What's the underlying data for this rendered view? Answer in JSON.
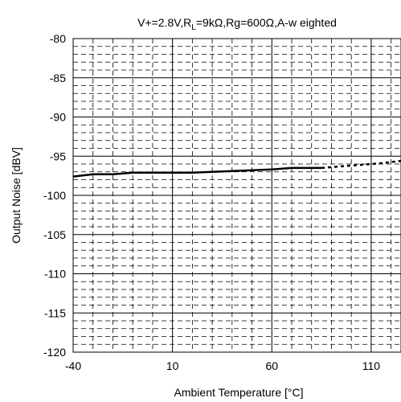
{
  "chart_data": {
    "type": "line",
    "title_parts": {
      "prefix": "V+=2.8V,R",
      "subscript": "L",
      "suffix": "=9kΩ,Rg=600Ω,A-w eighted"
    },
    "xlabel": "Ambient Temperature [°C]",
    "ylabel": "Output Noise [dBV]",
    "xlim": [
      -40,
      125
    ],
    "ylim": [
      -120,
      -80
    ],
    "x_ticks": [
      -40,
      10,
      60,
      110
    ],
    "y_ticks": [
      -80,
      -85,
      -90,
      -95,
      -100,
      -105,
      -110,
      -115,
      -120
    ],
    "grid": true,
    "series": [
      {
        "style": "solid",
        "color": "#000000",
        "points": [
          [
            -40,
            -97.6
          ],
          [
            -30,
            -97.3
          ],
          [
            -20,
            -97.3
          ],
          [
            -10,
            -97.1
          ],
          [
            0,
            -97.1
          ],
          [
            10,
            -97.1
          ],
          [
            20,
            -97.1
          ],
          [
            30,
            -97.0
          ],
          [
            40,
            -96.9
          ],
          [
            50,
            -96.8
          ],
          [
            60,
            -96.7
          ],
          [
            70,
            -96.5
          ],
          [
            85,
            -96.5
          ]
        ]
      },
      {
        "style": "dotted",
        "color": "#000000",
        "points": [
          [
            85,
            -96.5
          ],
          [
            95,
            -96.3
          ],
          [
            105,
            -96.1
          ],
          [
            115,
            -95.9
          ],
          [
            125,
            -95.6
          ]
        ]
      }
    ]
  }
}
